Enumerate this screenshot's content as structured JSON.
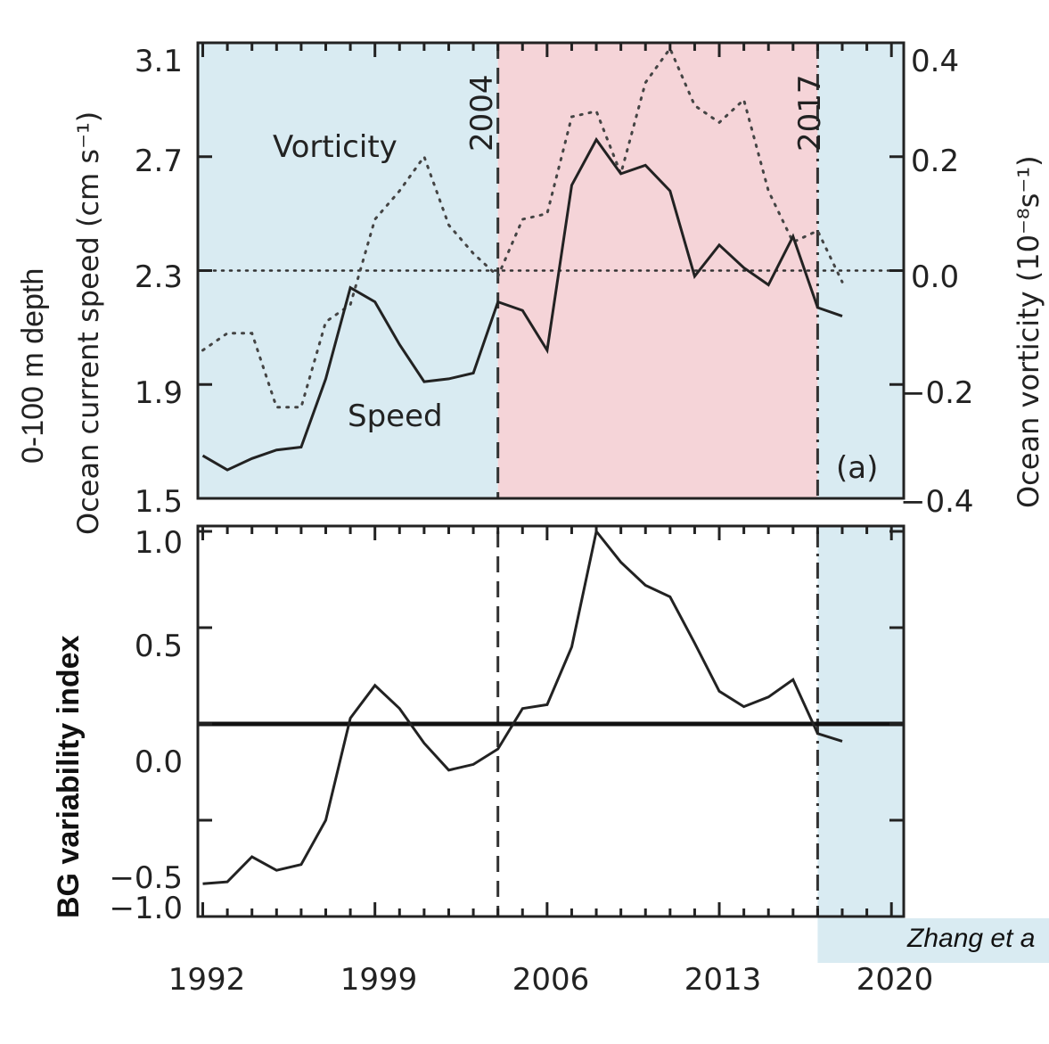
{
  "chart_data": [
    {
      "type": "line",
      "panel": "(a)",
      "x": [
        1992,
        1993,
        1994,
        1995,
        1996,
        1997,
        1998,
        1999,
        2000,
        2001,
        2002,
        2003,
        2004,
        2005,
        2006,
        2007,
        2008,
        2009,
        2010,
        2011,
        2012,
        2013,
        2014,
        2015,
        2016,
        2017,
        2018
      ],
      "series": [
        {
          "name": "Speed",
          "axis": "left",
          "style": "solid",
          "values": [
            1.65,
            1.6,
            1.64,
            1.67,
            1.68,
            1.92,
            2.24,
            2.19,
            2.04,
            1.91,
            1.92,
            1.94,
            2.19,
            2.16,
            2.02,
            2.6,
            2.76,
            2.64,
            2.67,
            2.58,
            2.28,
            2.39,
            2.31,
            2.25,
            2.42,
            2.17,
            2.14
          ]
        },
        {
          "name": "Vorticity",
          "axis": "right",
          "style": "dotted",
          "values": [
            -0.14,
            -0.11,
            -0.11,
            -0.24,
            -0.24,
            -0.09,
            -0.06,
            0.09,
            0.14,
            0.2,
            0.08,
            0.03,
            -0.01,
            0.09,
            0.1,
            0.27,
            0.28,
            0.17,
            0.33,
            0.39,
            0.29,
            0.26,
            0.3,
            0.14,
            0.05,
            0.07,
            -0.02
          ]
        }
      ],
      "xlim": [
        1991.8,
        2020.5
      ],
      "ylim_left": [
        1.5,
        3.1
      ],
      "ylim_right": [
        -0.4,
        0.4
      ],
      "yticks_left": [
        "1.5",
        "1.9",
        "2.3",
        "2.7",
        "3.1"
      ],
      "yticks_right": [
        "−0.4",
        "−0.2",
        "0.0",
        "0.2",
        "0.4"
      ],
      "ylabel_left": "Ocean current speed (cm s⁻¹)",
      "ylabel_right": "Ocean vorticity (10⁻⁸s⁻¹)",
      "ylabel_outer": "0-100 m depth",
      "annotations": [
        "Vorticity",
        "Speed",
        "2004",
        "2017",
        "(a)"
      ],
      "vlines": [
        2004,
        2017
      ],
      "hline_right": 0.0,
      "shaded": [
        {
          "from": 1991.8,
          "to": 2004,
          "color": "#d9ebf2"
        },
        {
          "from": 2004,
          "to": 2017,
          "color": "#f5d4d8"
        },
        {
          "from": 2017,
          "to": 2020.5,
          "color": "#d9ebf2"
        }
      ]
    },
    {
      "type": "line",
      "x": [
        1992,
        1993,
        1994,
        1995,
        1996,
        1997,
        1998,
        1999,
        2000,
        2001,
        2002,
        2003,
        2004,
        2005,
        2006,
        2007,
        2008,
        2009,
        2010,
        2011,
        2012,
        2013,
        2014,
        2015,
        2016,
        2017,
        2018
      ],
      "series": [
        {
          "name": "",
          "values": [
            -0.83,
            -0.82,
            -0.69,
            -0.76,
            -0.73,
            -0.5,
            0.03,
            0.2,
            0.08,
            -0.1,
            -0.24,
            -0.21,
            -0.13,
            0.08,
            0.1,
            0.4,
            1.0,
            0.84,
            0.72,
            0.66,
            0.42,
            0.17,
            0.09,
            0.14,
            0.23,
            -0.05,
            -0.09
          ]
        }
      ],
      "xlim": [
        1991.8,
        2020.5
      ],
      "ylim": [
        -1.0,
        1.0
      ],
      "yticks": [
        "−1.0",
        "−0.5",
        "0.0",
        "0.5",
        "1.0"
      ],
      "xticks": [
        "1992",
        "1999",
        "2006",
        "2013",
        "2020"
      ],
      "ylabel": "BG variability index",
      "vlines": [
        2004,
        2017
      ],
      "hline": 0.0,
      "shaded": [
        {
          "from": 2017,
          "to": 2020.5,
          "color": "#d9ebf2"
        }
      ]
    }
  ],
  "citation": "Zhang et a"
}
